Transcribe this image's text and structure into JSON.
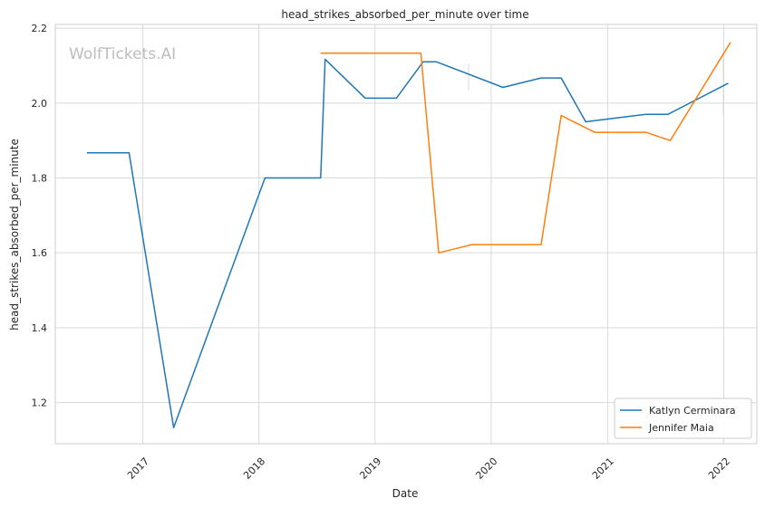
{
  "chart_data": {
    "type": "line",
    "title": "head_strikes_absorbed_per_minute over time",
    "xlabel": "Date",
    "ylabel": "head_strikes_absorbed_per_minute",
    "watermark": "WolfTickets.AI",
    "xlim": [
      "2016-04-01",
      "2022-04-15"
    ],
    "ylim": [
      1.09,
      2.21
    ],
    "x_ticks": [
      "2017-01-01",
      "2018-01-01",
      "2019-01-01",
      "2020-01-01",
      "2021-01-01",
      "2022-01-01"
    ],
    "x_tick_labels": [
      "2017",
      "2018",
      "2019",
      "2020",
      "2021",
      "2022"
    ],
    "y_ticks": [
      1.2,
      1.4,
      1.6,
      1.8,
      2.0,
      2.2
    ],
    "y_tick_labels": [
      "1.2",
      "1.4",
      "1.6",
      "1.8",
      "2.0",
      "2.2"
    ],
    "grid": true,
    "legend_position": "lower-right",
    "series": [
      {
        "name": "Katlyn Cerminara",
        "color": "#1f77b4",
        "points": [
          [
            "2016-07-09",
            1.867
          ],
          [
            "2016-11-19",
            1.867
          ],
          [
            "2017-04-08",
            1.133
          ],
          [
            "2018-01-20",
            1.8
          ],
          [
            "2018-07-14",
            1.8
          ],
          [
            "2018-07-28",
            2.117
          ],
          [
            "2018-12-01",
            2.013
          ],
          [
            "2019-03-09",
            2.013
          ],
          [
            "2019-06-01",
            2.11
          ],
          [
            "2019-07-13",
            2.11
          ],
          [
            "2020-02-07",
            2.042
          ],
          [
            "2020-06-06",
            2.067
          ],
          [
            "2020-08-08",
            2.067
          ],
          [
            "2020-10-24",
            1.95
          ],
          [
            "2021-05-01",
            1.97
          ],
          [
            "2021-07-10",
            1.97
          ],
          [
            "2022-01-15",
            2.053
          ]
        ]
      },
      {
        "name": "Jennifer Maia",
        "color": "#ff7f0e",
        "points": [
          [
            "2018-07-14",
            2.133
          ],
          [
            "2019-05-25",
            2.133
          ],
          [
            "2019-07-20",
            1.6
          ],
          [
            "2019-11-02",
            1.622
          ],
          [
            "2020-06-06",
            1.622
          ],
          [
            "2020-08-08",
            1.967
          ],
          [
            "2020-11-21",
            1.922
          ],
          [
            "2021-05-01",
            1.922
          ],
          [
            "2021-07-17",
            1.9
          ],
          [
            "2022-01-22",
            2.162
          ]
        ]
      }
    ]
  }
}
